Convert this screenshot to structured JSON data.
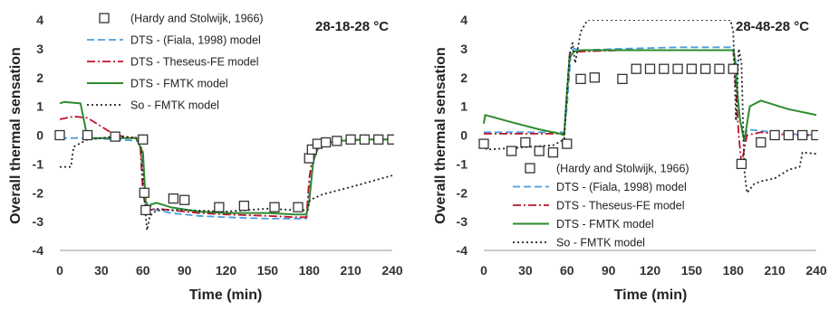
{
  "chart_data": [
    {
      "type": "line",
      "title": "28-18-28 °C",
      "xlabel": "Time (min)",
      "ylabel": "Overall  thermal sensation",
      "xlim": [
        0,
        240
      ],
      "ylim": [
        -4,
        4
      ],
      "xticks": [
        "0",
        "30",
        "60",
        "90",
        "120",
        "150",
        "180",
        "210",
        "240"
      ],
      "yticks": [
        "-4",
        "-3",
        "-2",
        "-1",
        "0",
        "1",
        "2",
        "3",
        "4"
      ],
      "legend_position": "top-left",
      "markers": {
        "name": "(Hardy and Stolwijk, 1966)",
        "x": [
          0,
          20,
          40,
          60,
          61,
          62,
          82,
          90,
          115,
          133,
          155,
          172,
          180,
          182,
          186,
          192,
          200,
          210,
          220,
          230,
          240
        ],
        "y": [
          0,
          0,
          -0.05,
          -0.15,
          -2.0,
          -2.6,
          -2.2,
          -2.25,
          -2.5,
          -2.45,
          -2.5,
          -2.5,
          -0.8,
          -0.5,
          -0.3,
          -0.25,
          -0.2,
          -0.15,
          -0.15,
          -0.15,
          -0.15
        ]
      },
      "series": [
        {
          "name": "DTS - (Fiala, 1998) model",
          "color": "#4a9ee0",
          "dash": "8,4",
          "x": [
            0,
            5,
            20,
            40,
            58,
            60,
            62,
            65,
            70,
            80,
            100,
            120,
            150,
            170,
            178,
            180,
            183,
            186,
            190,
            200,
            220,
            240
          ],
          "y": [
            -0.1,
            -0.1,
            -0.1,
            -0.15,
            -0.2,
            -1.0,
            -2.3,
            -2.5,
            -2.6,
            -2.7,
            -2.8,
            -2.85,
            -2.9,
            -2.9,
            -2.9,
            -2.0,
            -0.7,
            -0.5,
            -0.3,
            -0.2,
            -0.15,
            -0.15
          ]
        },
        {
          "name": "DTS - Theseus-FE model",
          "color": "#c0102a",
          "dash": "9,3,2,3",
          "x": [
            0,
            10,
            20,
            40,
            55,
            58,
            60,
            62,
            65,
            70,
            80,
            100,
            120,
            150,
            170,
            178,
            180,
            183,
            186,
            190,
            200,
            220,
            240
          ],
          "y": [
            0.55,
            0.65,
            0.6,
            0.0,
            -0.1,
            -0.3,
            -2.0,
            -2.5,
            -2.6,
            -2.55,
            -2.6,
            -2.7,
            -2.75,
            -2.8,
            -2.85,
            -2.85,
            -1.5,
            -0.6,
            -0.4,
            -0.3,
            -0.2,
            -0.15,
            -0.15
          ]
        },
        {
          "name": "DTS - FMTK model",
          "color": "#2e8b2e",
          "dash": "",
          "x": [
            0,
            3,
            15,
            20,
            40,
            55,
            60,
            62,
            64,
            66,
            70,
            80,
            100,
            120,
            150,
            170,
            178,
            180,
            183,
            186,
            190,
            200,
            220,
            240
          ],
          "y": [
            1.1,
            1.15,
            1.1,
            -0.1,
            -0.1,
            -0.1,
            -0.6,
            -2.3,
            -2.6,
            -2.4,
            -2.35,
            -2.5,
            -2.65,
            -2.7,
            -2.7,
            -2.75,
            -2.75,
            -2.3,
            -0.9,
            -0.5,
            -0.3,
            -0.2,
            -0.15,
            -0.15
          ]
        },
        {
          "name": "So - FMTK model",
          "color": "#222222",
          "dash": "2,3",
          "x": [
            0,
            8,
            10,
            20,
            40,
            58,
            60,
            62,
            63,
            65,
            70,
            90,
            120,
            150,
            170,
            179,
            180,
            183,
            190,
            210,
            240
          ],
          "y": [
            -1.1,
            -1.1,
            -0.4,
            -0.15,
            -0.05,
            -0.1,
            -1.5,
            -2.8,
            -3.3,
            -2.8,
            -2.6,
            -2.6,
            -2.65,
            -2.55,
            -2.6,
            -2.6,
            -2.3,
            -2.2,
            -2.05,
            -1.8,
            -1.4
          ]
        }
      ]
    },
    {
      "type": "line",
      "title": "28-48-28 °C",
      "xlabel": "Time (min)",
      "ylabel": "Overall  thermal sensation",
      "xlim": [
        0,
        240
      ],
      "ylim": [
        -4,
        4
      ],
      "xticks": [
        "0",
        "30",
        "60",
        "90",
        "120",
        "150",
        "180",
        "210",
        "240"
      ],
      "yticks": [
        "-4",
        "-3",
        "-2",
        "-1",
        "0",
        "1",
        "2",
        "3",
        "4"
      ],
      "legend_position": "bottom-left",
      "markers": {
        "name": "(Hardy and Stolwijk, 1966)",
        "x": [
          0,
          20,
          30,
          40,
          50,
          60,
          70,
          80,
          100,
          110,
          120,
          130,
          140,
          150,
          160,
          170,
          180,
          186,
          200,
          210,
          220,
          230,
          240
        ],
        "y": [
          -0.3,
          -0.55,
          -0.25,
          -0.55,
          -0.6,
          -0.3,
          1.95,
          2.0,
          1.95,
          2.3,
          2.3,
          2.3,
          2.3,
          2.3,
          2.3,
          2.3,
          2.3,
          -1.0,
          -0.25,
          0.0,
          0.0,
          0.0,
          0.0
        ]
      },
      "series": [
        {
          "name": "DTS - (Fiala, 1998) model",
          "color": "#4a9ee0",
          "dash": "8,4",
          "x": [
            0,
            30,
            58,
            60,
            63,
            65,
            70,
            100,
            140,
            175,
            180,
            182,
            184,
            186,
            188,
            190,
            200,
            220,
            240
          ],
          "y": [
            0.1,
            0.1,
            0.1,
            1.0,
            2.9,
            3.0,
            2.95,
            3.0,
            3.05,
            3.05,
            3.05,
            2.5,
            0.8,
            0.3,
            -0.2,
            0.2,
            0.15,
            0.05,
            0.0
          ]
        },
        {
          "name": "DTS - Theseus-FE model",
          "color": "#c0102a",
          "dash": "9,3,2,3",
          "x": [
            0,
            30,
            58,
            60,
            62,
            65,
            70,
            100,
            140,
            175,
            180,
            182,
            184,
            186,
            190,
            200,
            220,
            240
          ],
          "y": [
            0.05,
            0.05,
            0.05,
            1.5,
            2.85,
            2.9,
            2.9,
            2.95,
            2.95,
            2.95,
            2.95,
            1.5,
            0.0,
            -1.0,
            0.0,
            0.1,
            0.0,
            0.0
          ]
        },
        {
          "name": "DTS - FMTK model",
          "color": "#2e8b2e",
          "dash": "",
          "x": [
            0,
            1,
            20,
            40,
            55,
            58,
            60,
            62,
            65,
            70,
            100,
            140,
            175,
            180,
            181,
            183,
            185,
            188,
            192,
            200,
            220,
            240
          ],
          "y": [
            0.4,
            0.7,
            0.45,
            0.2,
            0.05,
            0.0,
            1.5,
            2.7,
            2.9,
            2.95,
            2.95,
            2.95,
            2.95,
            2.95,
            2.7,
            1.5,
            0.5,
            -0.2,
            1.0,
            1.2,
            0.9,
            0.7
          ]
        },
        {
          "name": "So - FMTK model",
          "color": "#222222",
          "dash": "2,3",
          "x": [
            0,
            2,
            20,
            50,
            58,
            60,
            62,
            64,
            66,
            70,
            75,
            80,
            175,
            178,
            180,
            182,
            184,
            186,
            188,
            190,
            195,
            200,
            210,
            220,
            228,
            230,
            240
          ],
          "y": [
            -0.3,
            -0.5,
            -0.45,
            -0.35,
            -0.15,
            1.5,
            2.8,
            3.2,
            2.5,
            3.6,
            4.0,
            4.0,
            4.0,
            4.0,
            3.6,
            0.5,
            3.0,
            2.5,
            -1.2,
            -2.0,
            -1.7,
            -1.6,
            -1.5,
            -1.2,
            -1.1,
            -0.6,
            -0.65
          ]
        }
      ]
    }
  ]
}
